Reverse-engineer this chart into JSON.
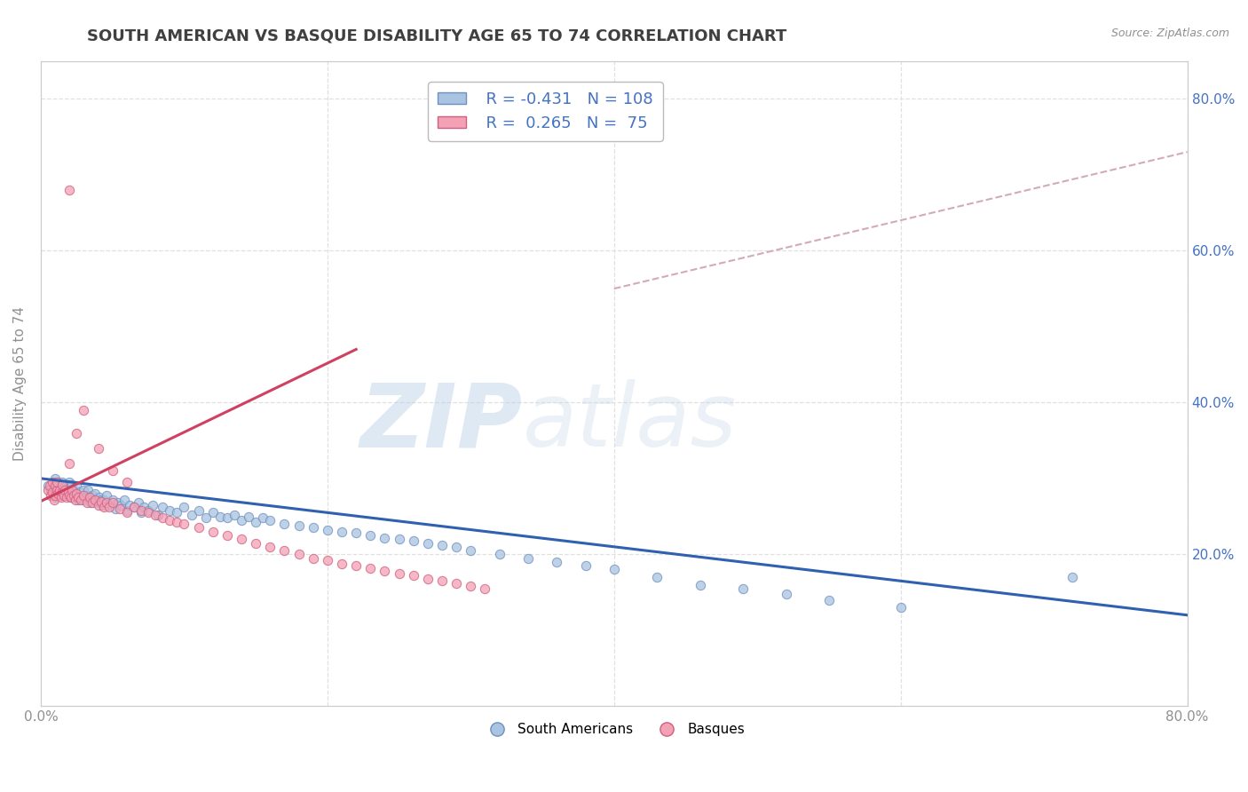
{
  "title": "SOUTH AMERICAN VS BASQUE DISABILITY AGE 65 TO 74 CORRELATION CHART",
  "source": "Source: ZipAtlas.com",
  "ylabel": "Disability Age 65 to 74",
  "xlim": [
    0.0,
    0.8
  ],
  "ylim": [
    0.0,
    0.85
  ],
  "blue_color": "#a8c4e0",
  "pink_color": "#f4a0b5",
  "blue_edge": "#7090c0",
  "pink_edge": "#d06080",
  "trend_blue": "#3060b0",
  "trend_pink": "#d04060",
  "ref_line_color": "#d4aab8",
  "legend_R1": "R = -0.431",
  "legend_N1": "N = 108",
  "legend_R2": "R =  0.265",
  "legend_N2": "N =  75",
  "legend_label1": "South Americans",
  "legend_label2": "Basques",
  "blue_scatter_x": [
    0.005,
    0.007,
    0.009,
    0.01,
    0.01,
    0.01,
    0.011,
    0.011,
    0.012,
    0.012,
    0.013,
    0.013,
    0.014,
    0.014,
    0.015,
    0.015,
    0.016,
    0.016,
    0.017,
    0.018,
    0.018,
    0.019,
    0.019,
    0.02,
    0.02,
    0.021,
    0.022,
    0.022,
    0.023,
    0.024,
    0.025,
    0.025,
    0.026,
    0.027,
    0.028,
    0.03,
    0.03,
    0.032,
    0.033,
    0.034,
    0.035,
    0.036,
    0.037,
    0.038,
    0.04,
    0.041,
    0.042,
    0.043,
    0.044,
    0.045,
    0.046,
    0.048,
    0.05,
    0.052,
    0.054,
    0.056,
    0.058,
    0.06,
    0.062,
    0.065,
    0.068,
    0.07,
    0.072,
    0.075,
    0.078,
    0.082,
    0.085,
    0.09,
    0.095,
    0.1,
    0.105,
    0.11,
    0.115,
    0.12,
    0.125,
    0.13,
    0.135,
    0.14,
    0.145,
    0.15,
    0.155,
    0.16,
    0.17,
    0.18,
    0.19,
    0.2,
    0.21,
    0.22,
    0.23,
    0.24,
    0.25,
    0.26,
    0.27,
    0.28,
    0.29,
    0.3,
    0.32,
    0.34,
    0.36,
    0.38,
    0.4,
    0.43,
    0.46,
    0.49,
    0.52,
    0.55,
    0.6,
    0.72
  ],
  "blue_scatter_y": [
    0.29,
    0.285,
    0.295,
    0.3,
    0.285,
    0.275,
    0.29,
    0.282,
    0.295,
    0.285,
    0.28,
    0.292,
    0.288,
    0.278,
    0.285,
    0.295,
    0.278,
    0.292,
    0.282,
    0.285,
    0.292,
    0.278,
    0.288,
    0.282,
    0.295,
    0.275,
    0.285,
    0.292,
    0.275,
    0.282,
    0.278,
    0.29,
    0.272,
    0.282,
    0.275,
    0.285,
    0.272,
    0.278,
    0.285,
    0.275,
    0.268,
    0.278,
    0.272,
    0.28,
    0.268,
    0.275,
    0.272,
    0.265,
    0.272,
    0.268,
    0.278,
    0.265,
    0.272,
    0.26,
    0.268,
    0.265,
    0.272,
    0.258,
    0.265,
    0.262,
    0.268,
    0.255,
    0.262,
    0.258,
    0.265,
    0.252,
    0.262,
    0.258,
    0.255,
    0.262,
    0.252,
    0.258,
    0.248,
    0.255,
    0.25,
    0.248,
    0.252,
    0.245,
    0.25,
    0.242,
    0.248,
    0.245,
    0.24,
    0.238,
    0.235,
    0.232,
    0.23,
    0.228,
    0.225,
    0.222,
    0.22,
    0.218,
    0.215,
    0.212,
    0.21,
    0.205,
    0.2,
    0.195,
    0.19,
    0.185,
    0.18,
    0.17,
    0.16,
    0.155,
    0.148,
    0.14,
    0.13,
    0.17
  ],
  "pink_scatter_x": [
    0.005,
    0.006,
    0.007,
    0.008,
    0.008,
    0.009,
    0.01,
    0.01,
    0.011,
    0.011,
    0.012,
    0.013,
    0.014,
    0.015,
    0.015,
    0.016,
    0.017,
    0.018,
    0.019,
    0.02,
    0.021,
    0.022,
    0.023,
    0.024,
    0.025,
    0.026,
    0.028,
    0.03,
    0.032,
    0.034,
    0.036,
    0.038,
    0.04,
    0.042,
    0.044,
    0.046,
    0.048,
    0.05,
    0.055,
    0.06,
    0.065,
    0.07,
    0.075,
    0.08,
    0.085,
    0.09,
    0.095,
    0.1,
    0.11,
    0.12,
    0.13,
    0.14,
    0.15,
    0.16,
    0.17,
    0.18,
    0.19,
    0.2,
    0.21,
    0.22,
    0.23,
    0.24,
    0.25,
    0.26,
    0.27,
    0.28,
    0.29,
    0.3,
    0.31,
    0.02,
    0.025,
    0.03,
    0.04,
    0.05,
    0.06
  ],
  "pink_scatter_y": [
    0.285,
    0.29,
    0.278,
    0.295,
    0.282,
    0.272,
    0.29,
    0.278,
    0.285,
    0.295,
    0.28,
    0.285,
    0.275,
    0.282,
    0.292,
    0.278,
    0.285,
    0.275,
    0.282,
    0.278,
    0.275,
    0.285,
    0.278,
    0.272,
    0.28,
    0.275,
    0.272,
    0.278,
    0.268,
    0.275,
    0.268,
    0.272,
    0.265,
    0.27,
    0.262,
    0.268,
    0.262,
    0.268,
    0.26,
    0.255,
    0.262,
    0.258,
    0.255,
    0.252,
    0.248,
    0.245,
    0.242,
    0.24,
    0.235,
    0.23,
    0.225,
    0.22,
    0.215,
    0.21,
    0.205,
    0.2,
    0.195,
    0.192,
    0.188,
    0.185,
    0.182,
    0.178,
    0.175,
    0.172,
    0.168,
    0.165,
    0.162,
    0.158,
    0.155,
    0.32,
    0.36,
    0.39,
    0.34,
    0.31,
    0.295
  ],
  "blue_trend_x": [
    0.0,
    0.8
  ],
  "blue_trend_y": [
    0.3,
    0.12
  ],
  "pink_trend_x": [
    0.0,
    0.22
  ],
  "pink_trend_y": [
    0.27,
    0.47
  ],
  "ref_line_x": [
    0.4,
    0.8
  ],
  "ref_line_y": [
    0.55,
    0.73
  ],
  "watermark_zip": "ZIP",
  "watermark_atlas": "atlas",
  "title_color": "#404040",
  "axis_color": "#909090",
  "grid_color": "#e0e0e0",
  "title_fontsize": 13,
  "label_fontsize": 11,
  "tick_fontsize": 11,
  "scatter_size": 55,
  "scatter_alpha": 0.75,
  "legend_fontsize": 13
}
